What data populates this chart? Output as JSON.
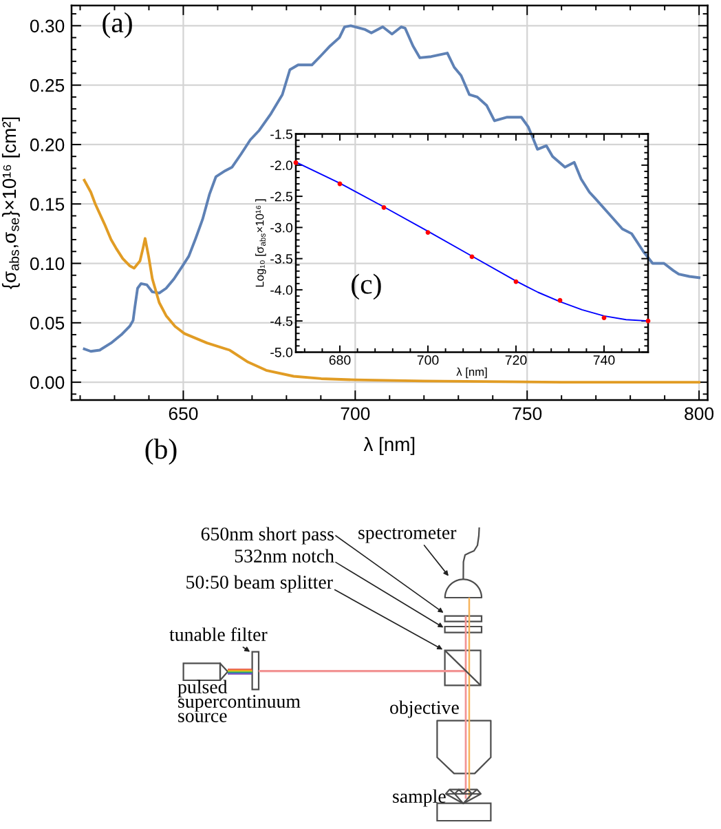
{
  "chart_data": [
    {
      "type": "line",
      "xlabel": "λ [nm]",
      "ylabel": "{σ$_{abs}$,σ$_{se}$}×10¹⁶ [cm²]",
      "annotations": [
        "(a)"
      ],
      "xlim": [
        617.5,
        802.5
      ],
      "ylim": [
        -0.015,
        0.317
      ],
      "xticks": [
        650,
        700,
        750,
        800
      ],
      "yticks": [
        {
          "value": 0,
          "label": "0.00"
        },
        {
          "value": 0.05,
          "label": "0.05"
        },
        {
          "value": 0.1,
          "label": "0.10"
        },
        {
          "value": 0.15,
          "label": "0.15"
        },
        {
          "value": 0.2,
          "label": "0.20"
        },
        {
          "value": 0.25,
          "label": "0.25"
        },
        {
          "value": 0.3,
          "label": "0.30"
        }
      ],
      "grid": true,
      "series": [
        {
          "color": "#5e81b5",
          "x": [
            621.2,
            623.1,
            625.7,
            629.0,
            632.0,
            634.4,
            635.4,
            635.9,
            636.7,
            637.7,
            639.4,
            641.0,
            643.0,
            645.0,
            647.3,
            649.6,
            651.6,
            653.6,
            655.6,
            657.6,
            659.5,
            662.2,
            664.2,
            666.8,
            669.5,
            672.1,
            675.5,
            678.8,
            681.0,
            683.4,
            687.4,
            690.1,
            692.7,
            695.4,
            696.9,
            698.7,
            702.7,
            704.7,
            708.0,
            710.7,
            713.4,
            714.5,
            716.8,
            718.8,
            722.1,
            726.8,
            728.8,
            730.8,
            733.2,
            735.5,
            738.2,
            740.5,
            744.2,
            748.3,
            750.3,
            751.6,
            753.0,
            755.6,
            757.4,
            761.0,
            763.7,
            765.7,
            768.1,
            769.7,
            773.7,
            777.7,
            780.4,
            783.8,
            786.5,
            789.8,
            792.5,
            794.1,
            797.2,
            800.0
          ],
          "values": [
            0.028,
            0.026,
            0.027,
            0.033,
            0.04,
            0.047,
            0.052,
            0.063,
            0.079,
            0.083,
            0.082,
            0.076,
            0.075,
            0.079,
            0.087,
            0.097,
            0.106,
            0.121,
            0.137,
            0.158,
            0.173,
            0.178,
            0.181,
            0.192,
            0.204,
            0.212,
            0.226,
            0.242,
            0.263,
            0.267,
            0.267,
            0.275,
            0.283,
            0.29,
            0.299,
            0.3,
            0.297,
            0.294,
            0.299,
            0.293,
            0.299,
            0.298,
            0.283,
            0.273,
            0.274,
            0.277,
            0.265,
            0.258,
            0.242,
            0.24,
            0.233,
            0.22,
            0.223,
            0.223,
            0.215,
            0.206,
            0.196,
            0.199,
            0.19,
            0.181,
            0.185,
            0.171,
            0.16,
            0.155,
            0.142,
            0.129,
            0.125,
            0.11,
            0.1,
            0.1,
            0.094,
            0.091,
            0.089,
            0.088
          ]
        },
        {
          "color": "#e19c24",
          "x": [
            621.2,
            623.1,
            624.4,
            627.1,
            629.0,
            630.4,
            632.4,
            634.4,
            635.7,
            637.4,
            638.3,
            638.9,
            639.9,
            641.0,
            643.0,
            645.0,
            647.6,
            650.3,
            656.9,
            663.5,
            668.8,
            674.1,
            682.1,
            690.1,
            700.0,
            720.0,
            760.0,
            800.0
          ],
          "values": [
            0.17,
            0.16,
            0.15,
            0.133,
            0.12,
            0.113,
            0.104,
            0.098,
            0.096,
            0.102,
            0.113,
            0.121,
            0.106,
            0.087,
            0.067,
            0.056,
            0.047,
            0.041,
            0.033,
            0.027,
            0.017,
            0.01,
            0.005,
            0.003,
            0.002,
            0.001,
            0.0,
            0.0
          ]
        }
      ]
    },
    {
      "type": "line",
      "xlabel": "λ [nm]",
      "ylabel": "Log₁₀ [σ$_{abs}$×10¹⁶ ]",
      "annotations": [
        "(c)"
      ],
      "xlim": [
        670,
        750
      ],
      "ylim": [
        -5,
        -1.5
      ],
      "xticks": [
        680,
        700,
        720,
        740
      ],
      "yticks": [
        {
          "value": -5,
          "label": "-5.0"
        },
        {
          "value": -4.5,
          "label": "-4.5"
        },
        {
          "value": -4,
          "label": "-4.0"
        },
        {
          "value": -3.5,
          "label": "-3.5"
        },
        {
          "value": -3,
          "label": "-3.0"
        },
        {
          "value": -2.5,
          "label": "-2.5"
        },
        {
          "value": -2,
          "label": "-2.0"
        },
        {
          "value": -1.5,
          "label": "-1.5"
        }
      ],
      "series": [
        {
          "type": "line",
          "color": "#0000ff",
          "x": [
            670,
            680,
            690,
            700,
            710,
            720,
            725,
            730,
            735,
            740,
            745,
            750
          ],
          "values": [
            -1.95,
            -2.29,
            -2.67,
            -3.06,
            -3.46,
            -3.86,
            -4.04,
            -4.19,
            -4.32,
            -4.42,
            -4.48,
            -4.5
          ]
        },
        {
          "type": "scatter",
          "marker": "circle",
          "color": "#ff0000",
          "x": [
            670,
            680,
            690,
            700,
            710,
            720,
            730,
            740,
            750
          ],
          "values": [
            -1.96,
            -2.3,
            -2.68,
            -3.08,
            -3.47,
            -3.87,
            -4.17,
            -4.45,
            -4.5
          ]
        }
      ]
    },
    {
      "type": "other",
      "annotations": [
        "(b)",
        "650nm short pass",
        "532nm notch",
        "50:50 beam splitter",
        "spectrometer",
        "tunable filter",
        "pulsed\nsupercontinuum\nsource",
        "objective",
        "sample"
      ]
    }
  ]
}
